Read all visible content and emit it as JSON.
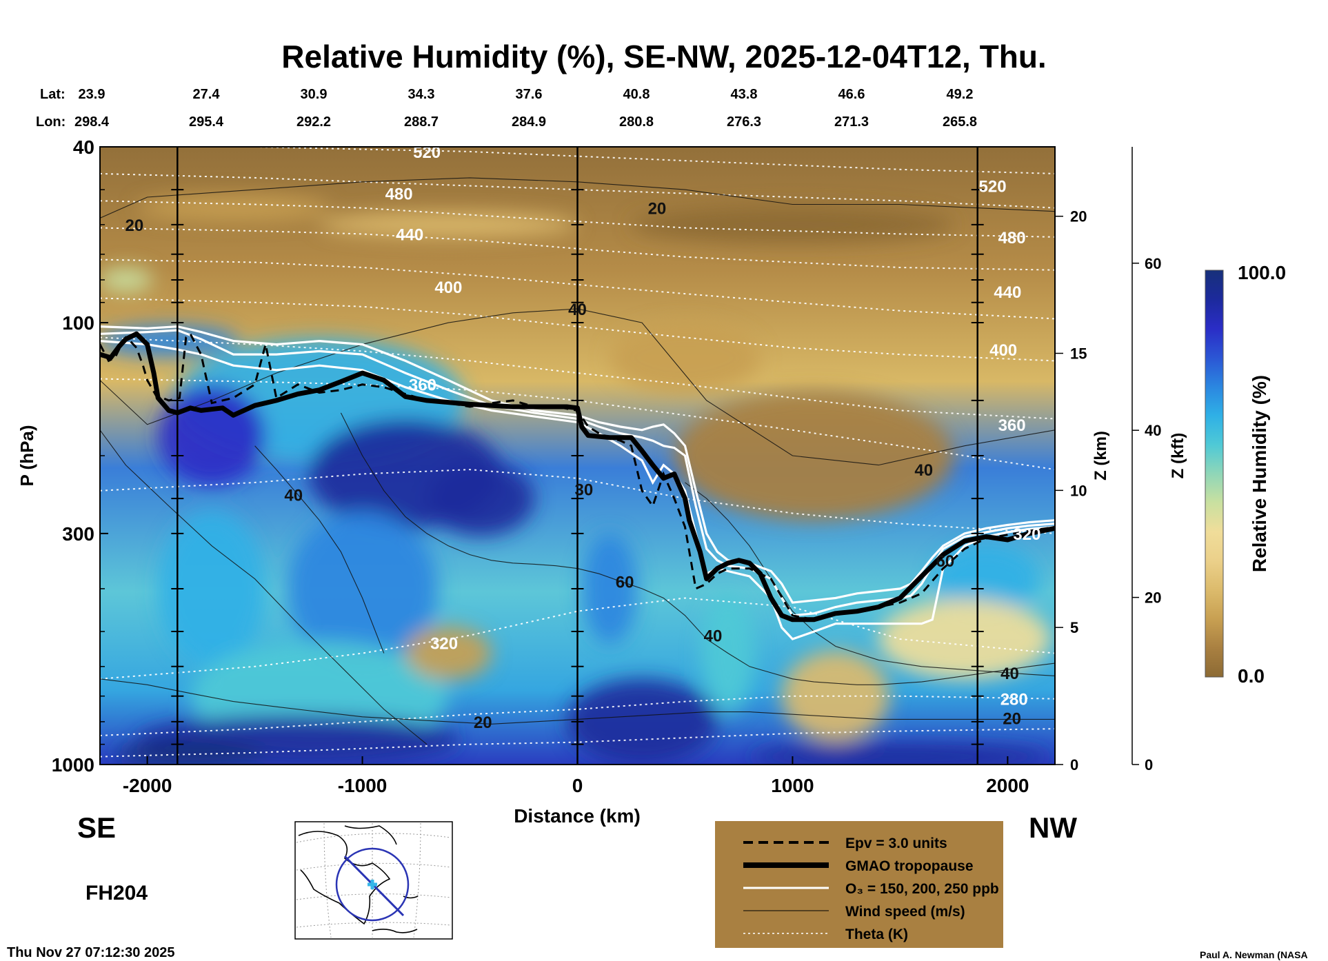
{
  "chart_data": {
    "type": "heatmap",
    "title": "Relative Humidity (%), SE-NW, 2025-12-04T12, Thu.",
    "xlabel": "Distance (km)",
    "ylabel": "P (hPa)",
    "xlim": [
      -2220,
      2220
    ],
    "ylim": [
      1000,
      40
    ],
    "y_scale": "log",
    "x_ticks": [
      -2000,
      -1000,
      0,
      1000,
      2000
    ],
    "y_ticks": [
      1000,
      300,
      100,
      40
    ],
    "z_km_label": "Z (km)",
    "z_km_ticks": [
      0,
      5,
      10,
      15,
      20
    ],
    "z_kft_label": "Z (kft)",
    "z_kft_ticks": [
      0,
      20,
      40,
      60
    ],
    "lat_label": "Lat:",
    "lon_label": "Lon:",
    "lat_values": [
      "23.9",
      "27.4",
      "30.9",
      "34.3",
      "37.6",
      "40.8",
      "43.8",
      "46.6",
      "49.2"
    ],
    "lon_values": [
      "298.4",
      "295.4",
      "292.2",
      "288.7",
      "284.9",
      "280.8",
      "276.3",
      "271.3",
      "265.8"
    ],
    "direction_left": "SE",
    "direction_right": "NW",
    "colorbar": {
      "label": "Relative Humidity (%)",
      "max_label": "100.0",
      "min_label": "0.0",
      "colors": [
        "#8c6a34",
        "#a98041",
        "#c8a052",
        "#dcbb6c",
        "#ebd08a",
        "#f0dd9a",
        "#c9e0a0",
        "#8fd6b8",
        "#4fc9d6",
        "#2fb0e6",
        "#2b86e0",
        "#2b55d4",
        "#2a2dc6",
        "#1c2a9c",
        "#17307a"
      ]
    },
    "theta_labels": [
      {
        "value": "520",
        "x": -700,
        "p": 41
      },
      {
        "value": "480",
        "x": -830,
        "p": 51
      },
      {
        "value": "440",
        "x": -780,
        "p": 63
      },
      {
        "value": "400",
        "x": -600,
        "p": 83
      },
      {
        "value": "360",
        "x": -720,
        "p": 138
      },
      {
        "value": "320",
        "x": -620,
        "p": 530
      },
      {
        "value": "520",
        "x": 1930,
        "p": 49
      },
      {
        "value": "480",
        "x": 2020,
        "p": 64
      },
      {
        "value": "440",
        "x": 2000,
        "p": 85
      },
      {
        "value": "400",
        "x": 1980,
        "p": 115
      },
      {
        "value": "360",
        "x": 2020,
        "p": 170
      },
      {
        "value": "320",
        "x": 2090,
        "p": 300
      },
      {
        "value": "280",
        "x": 2030,
        "p": 710
      }
    ],
    "wind_labels": [
      {
        "value": "20",
        "x": -2060,
        "p": 60
      },
      {
        "value": "20",
        "x": 370,
        "p": 55
      },
      {
        "value": "40",
        "x": 0,
        "p": 93
      },
      {
        "value": "40",
        "x": -1320,
        "p": 245
      },
      {
        "value": "30",
        "x": 30,
        "p": 238
      },
      {
        "value": "60",
        "x": 220,
        "p": 385
      },
      {
        "value": "40",
        "x": 630,
        "p": 510
      },
      {
        "value": "40",
        "x": 1610,
        "p": 215
      },
      {
        "value": "60",
        "x": 1710,
        "p": 345
      },
      {
        "value": "20",
        "x": -440,
        "p": 800
      },
      {
        "value": "40",
        "x": 2010,
        "p": 620
      },
      {
        "value": "20",
        "x": 2020,
        "p": 785
      }
    ],
    "tropopause": {
      "x": [
        -2220,
        -2170,
        -2130,
        -2100,
        -2050,
        -2000,
        -1970,
        -1950,
        -1900,
        -1860,
        -1800,
        -1750,
        -1650,
        -1600,
        -1500,
        -1400,
        -1300,
        -1200,
        -1100,
        -1000,
        -900,
        -800,
        -700,
        -500,
        -300,
        -100,
        -50,
        0,
        20,
        50,
        150,
        250,
        300,
        350,
        400,
        450,
        500,
        520,
        570,
        600,
        650,
        700,
        750,
        800,
        850,
        900,
        950,
        1000,
        1100,
        1200,
        1300,
        1400,
        1500,
        1600,
        1700,
        1800,
        1900,
        2000,
        2100,
        2220
      ],
      "p": [
        118,
        120,
        113,
        109,
        106,
        112,
        130,
        148,
        158,
        160,
        156,
        158,
        156,
        162,
        154,
        150,
        145,
        142,
        136,
        130,
        135,
        147,
        150,
        153,
        155,
        155,
        155,
        156,
        172,
        180,
        182,
        182,
        195,
        210,
        225,
        220,
        250,
        280,
        330,
        380,
        360,
        350,
        345,
        350,
        370,
        420,
        460,
        470,
        470,
        455,
        450,
        440,
        420,
        375,
        335,
        312,
        305,
        310,
        300,
        292
      ]
    },
    "ozone_contours": [
      {
        "name": "150",
        "x": [
          -2220,
          -2000,
          -1860,
          -1750,
          -1600,
          -1400,
          -1200,
          -1000,
          -800,
          -600,
          -400,
          -200,
          0,
          100,
          200,
          300,
          350,
          400,
          450,
          500,
          550,
          600,
          650,
          700,
          800,
          900,
          950,
          1000,
          1100,
          1200,
          1300,
          1400,
          1500,
          1550,
          1600,
          1650,
          1700,
          1800,
          1900,
          2000,
          2100,
          2220
        ],
        "p": [
          102,
          103,
          102,
          105,
          110,
          112,
          110,
          112,
          122,
          135,
          150,
          158,
          162,
          168,
          172,
          175,
          172,
          170,
          178,
          190,
          240,
          300,
          330,
          345,
          350,
          365,
          390,
          430,
          425,
          420,
          410,
          405,
          400,
          390,
          365,
          340,
          320,
          300,
          292,
          287,
          283,
          280
        ]
      },
      {
        "name": "200",
        "x": [
          -2220,
          -2000,
          -1860,
          -1750,
          -1600,
          -1400,
          -1200,
          -1000,
          -800,
          -600,
          -400,
          -200,
          0,
          100,
          200,
          300,
          350,
          400,
          450,
          500,
          550,
          600,
          650,
          700,
          800,
          900,
          950,
          1000,
          1100,
          1200,
          1300,
          1400,
          1500,
          1550,
          1600,
          1650,
          1700,
          1800,
          1900,
          2000,
          2100,
          2220
        ],
        "p": [
          106,
          105,
          104,
          109,
          118,
          118,
          116,
          118,
          130,
          142,
          154,
          160,
          165,
          172,
          178,
          182,
          185,
          190,
          192,
          200,
          260,
          325,
          345,
          355,
          360,
          380,
          420,
          460,
          455,
          440,
          430,
          425,
          420,
          415,
          390,
          355,
          325,
          305,
          298,
          292,
          288,
          285
        ]
      },
      {
        "name": "250",
        "x": [
          -2220,
          -2000,
          -1860,
          -1750,
          -1600,
          -1400,
          -1200,
          -1000,
          -800,
          -600,
          -400,
          -200,
          0,
          100,
          200,
          300,
          350,
          400,
          450,
          500,
          550,
          600,
          650,
          700,
          800,
          900,
          950,
          1000,
          1100,
          1200,
          1300,
          1400,
          1500,
          1550,
          1600,
          1650,
          1700,
          1800,
          1900,
          2000,
          2100,
          2220
        ],
        "p": [
          110,
          112,
          115,
          118,
          125,
          128,
          125,
          128,
          140,
          150,
          158,
          163,
          168,
          178,
          190,
          205,
          230,
          210,
          220,
          240,
          300,
          370,
          360,
          365,
          375,
          420,
          490,
          520,
          500,
          480,
          480,
          480,
          480,
          480,
          480,
          470,
          360,
          320,
          305,
          298,
          293,
          290
        ]
      }
    ],
    "epv_contour": {
      "x": [
        -2220,
        -2180,
        -2150,
        -2120,
        -2100,
        -2080,
        -2050,
        -2020,
        -2000,
        -1960,
        -1900,
        -1850,
        -1820,
        -1800,
        -1750,
        -1700,
        -1600,
        -1500,
        -1450,
        -1400,
        -1300,
        -1200,
        -1100,
        -1000,
        -900,
        -800,
        -700,
        -600,
        -500,
        -400,
        -300,
        -200,
        -100,
        0,
        50,
        100,
        150,
        200,
        250,
        300,
        350,
        400,
        450,
        500,
        550,
        600,
        650,
        700,
        800,
        900,
        1000,
        1100,
        1200,
        1300,
        1400,
        1500,
        1600,
        1700,
        1800,
        1900,
        2000,
        2100,
        2220
      ],
      "p": [
        112,
        122,
        120,
        112,
        108,
        110,
        114,
        125,
        135,
        146,
        150,
        148,
        108,
        106,
        118,
        152,
        148,
        138,
        112,
        148,
        138,
        144,
        142,
        138,
        140,
        145,
        150,
        152,
        155,
        152,
        150,
        155,
        155,
        158,
        172,
        178,
        182,
        185,
        190,
        240,
        260,
        220,
        250,
        290,
        400,
        390,
        370,
        360,
        360,
        380,
        460,
        470,
        455,
        448,
        440,
        430,
        410,
        360,
        325,
        308,
        302,
        296,
        290
      ]
    },
    "wind_speed_contours": [
      {
        "x": [
          -2220,
          -2000,
          -1500,
          -1000,
          -500,
          0,
          500,
          1000,
          1500,
          2220
        ],
        "p": [
          58,
          52,
          50,
          48,
          47,
          48,
          50,
          54,
          54,
          56
        ]
      },
      {
        "x": [
          -2220,
          -2000,
          -1700,
          -1400,
          -1000,
          -600,
          -300,
          0,
          300,
          600,
          1000,
          1400,
          1800,
          2220
        ],
        "p": [
          135,
          170,
          150,
          130,
          112,
          100,
          95,
          93,
          100,
          150,
          200,
          210,
          190,
          175
        ]
      },
      {
        "x": [
          -2220,
          -2100,
          -1900,
          -1700,
          -1500,
          -1300,
          -1100,
          -900,
          -700
        ],
        "p": [
          175,
          210,
          260,
          320,
          380,
          480,
          600,
          750,
          900
        ]
      },
      {
        "x": [
          -1500,
          -1400,
          -1300,
          -1200,
          -1100,
          -1000,
          -900
        ],
        "p": [
          190,
          215,
          245,
          280,
          330,
          420,
          560
        ]
      },
      {
        "x": [
          -1100,
          -1000,
          -900,
          -800,
          -700,
          -600,
          -500,
          -400,
          -300,
          -200,
          -100,
          0,
          100,
          200,
          300,
          400,
          500,
          600,
          700,
          800,
          900,
          1000,
          1100,
          1200,
          1300,
          1400,
          1500,
          1600,
          1700,
          1800,
          1900,
          2000,
          2100,
          2220
        ],
        "p": [
          160,
          200,
          240,
          275,
          300,
          320,
          335,
          345,
          350,
          352,
          355,
          360,
          370,
          385,
          400,
          420,
          460,
          520,
          560,
          600,
          620,
          640,
          650,
          655,
          660,
          660,
          655,
          650,
          640,
          630,
          620,
          610,
          600,
          590
        ]
      },
      {
        "x": [
          -2220,
          -2000,
          -1800,
          -1600,
          -1400,
          -1200,
          -1000,
          -800,
          -600,
          -400,
          -200,
          0,
          200,
          400,
          600,
          800,
          1000,
          1200,
          1400,
          1600,
          1800,
          2000,
          2220
        ],
        "p": [
          640,
          660,
          690,
          720,
          740,
          760,
          780,
          790,
          800,
          810,
          800,
          790,
          780,
          770,
          760,
          760,
          770,
          780,
          790,
          790,
          790,
          790,
          790
        ]
      },
      {
        "x": [
          500,
          600,
          700,
          800,
          900,
          1000,
          1100,
          1200,
          1300,
          1400,
          1500,
          1600,
          1700,
          1800,
          1900,
          2000,
          2100,
          2220
        ],
        "p": [
          230,
          250,
          280,
          320,
          380,
          450,
          500,
          540,
          560,
          580,
          590,
          600,
          605,
          610,
          615,
          620,
          625,
          630
        ]
      }
    ],
    "theta_levels": [
      {
        "x": [
          -2220,
          -1500,
          -1000,
          -500,
          0,
          500,
          1000,
          1500,
          2220
        ],
        "p": [
          40,
          40,
          40.5,
          41,
          42,
          43,
          44,
          45,
          46
        ]
      },
      {
        "x": [
          -2220,
          -1500,
          -1000,
          -500,
          0,
          500,
          1000,
          1500,
          2220
        ],
        "p": [
          46,
          47,
          48,
          49,
          50,
          51,
          52,
          53,
          55
        ]
      },
      {
        "x": [
          -2220,
          -1500,
          -1000,
          -500,
          0,
          500,
          1000,
          1500,
          2220
        ],
        "p": [
          53,
          54,
          55,
          57,
          59,
          61,
          62,
          63,
          64
        ]
      },
      {
        "x": [
          -2220,
          -1500,
          -1000,
          -500,
          0,
          500,
          1000,
          1500,
          2220
        ],
        "p": [
          61,
          62,
          63,
          65,
          68,
          71,
          73,
          75,
          76
        ]
      },
      {
        "x": [
          -2220,
          -1500,
          -1000,
          -500,
          0,
          500,
          1000,
          1500,
          2220
        ],
        "p": [
          72,
          73,
          75,
          78,
          82,
          86,
          90,
          94,
          98
        ]
      },
      {
        "x": [
          -2220,
          -1500,
          -1000,
          -500,
          0,
          500,
          1000,
          1500,
          2220
        ],
        "p": [
          88,
          90,
          92,
          96,
          102,
          108,
          114,
          118,
          122
        ]
      },
      {
        "x": [
          -2220,
          -1500,
          -1000,
          -500,
          0,
          500,
          1000,
          1500,
          2220
        ],
        "p": [
          108,
          112,
          116,
          122,
          130,
          138,
          148,
          158,
          165
        ]
      },
      {
        "x": [
          -2220,
          -1500,
          -1000,
          -500,
          0,
          500,
          1000,
          1500,
          2220
        ],
        "p": [
          134,
          136,
          138,
          142,
          150,
          162,
          175,
          190,
          215
        ]
      },
      {
        "x": [
          -2220,
          -1500,
          -1000,
          -500,
          0,
          500,
          1000,
          1500,
          2220
        ],
        "p": [
          240,
          230,
          220,
          215,
          225,
          250,
          270,
          285,
          300
        ]
      },
      {
        "x": [
          -2220,
          -1500,
          -1000,
          -500,
          0,
          500,
          1000,
          1500,
          2220
        ],
        "p": [
          640,
          600,
          560,
          510,
          450,
          420,
          440,
          520,
          560
        ]
      },
      {
        "x": [
          -2220,
          -1500,
          -1000,
          -500,
          0,
          500,
          1000,
          1500,
          2220
        ],
        "p": [
          860,
          830,
          800,
          770,
          750,
          720,
          700,
          700,
          710
        ]
      },
      {
        "x": [
          -2220,
          -1500,
          -1000,
          -500,
          0,
          500,
          1000,
          1500,
          2220
        ],
        "p": [
          960,
          940,
          920,
          900,
          890,
          870,
          850,
          840,
          830
        ]
      }
    ],
    "vertical_markers": [
      -1860,
      0,
      1860
    ],
    "legend": [
      {
        "label": "Epv = 3.0 units",
        "style": "dashed-black"
      },
      {
        "label": "GMAO tropopause",
        "style": "thick-black"
      },
      {
        "label": "O₃ = 150, 200, 250 ppb",
        "style": "white"
      },
      {
        "label": "Wind speed (m/s)",
        "style": "thin-black"
      },
      {
        "label": "Theta (K)",
        "style": "dotted-white"
      }
    ],
    "legend_bg": "#a98041",
    "forecast_hour": "FH204",
    "timestamp": "Thu Nov 27 07:12:30 2025",
    "credit": "Paul A. Newman (NASA"
  }
}
